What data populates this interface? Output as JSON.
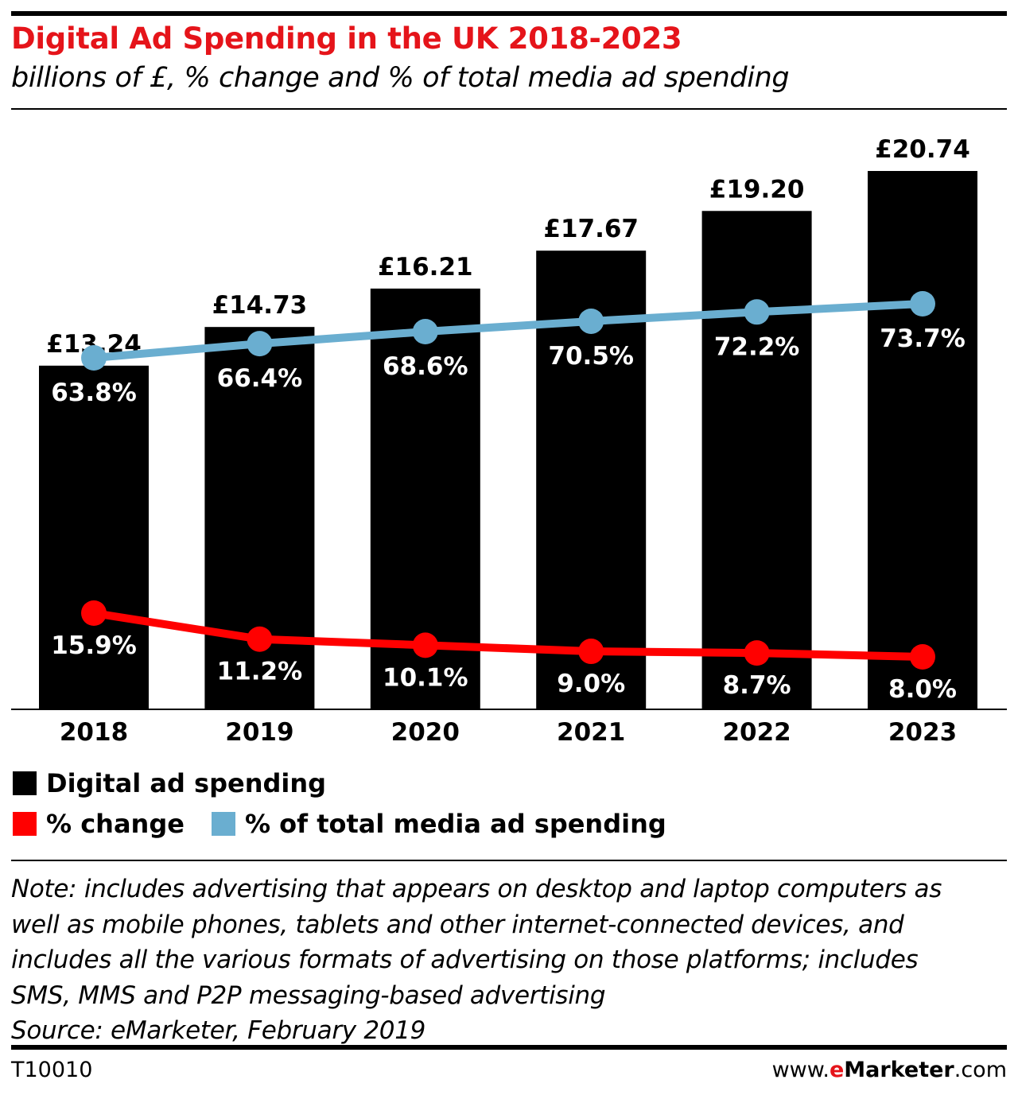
{
  "header": {
    "title": "Digital Ad Spending in the UK 2018-2023",
    "subtitle": "billions of £, % change and % of total media ad spending"
  },
  "chart_data": {
    "type": "bar",
    "categories": [
      "2018",
      "2019",
      "2020",
      "2021",
      "2022",
      "2023"
    ],
    "series": [
      {
        "name": "Digital ad spending",
        "type": "bar",
        "values": [
          13.24,
          14.73,
          16.21,
          17.67,
          19.2,
          20.74
        ],
        "labels": [
          "£13.24",
          "£14.73",
          "£16.21",
          "£17.67",
          "£19.20",
          "£20.74"
        ],
        "color": "#000000"
      },
      {
        "name": "% of total media ad spending",
        "type": "line",
        "values": [
          63.8,
          66.4,
          68.6,
          70.5,
          72.2,
          73.7
        ],
        "labels": [
          "63.8%",
          "66.4%",
          "68.6%",
          "70.5%",
          "72.2%",
          "73.7%"
        ],
        "color": "#6aaed0"
      },
      {
        "name": "% change",
        "type": "line",
        "values": [
          15.9,
          11.2,
          10.1,
          9.0,
          8.7,
          8.0
        ],
        "labels": [
          "15.9%",
          "11.2%",
          "10.1%",
          "9.0%",
          "8.7%",
          "8.0%"
        ],
        "color": "#ff0000"
      }
    ],
    "grid": false,
    "legend_placement": "bottom-left"
  },
  "legend": {
    "items": [
      {
        "label": "Digital ad spending",
        "color": "#000000"
      },
      {
        "label": "% change",
        "color": "#ff0000"
      },
      {
        "label": "% of total media ad spending",
        "color": "#6aaed0"
      }
    ]
  },
  "footnote": {
    "lines": [
      "Note: includes advertising that appears on desktop and laptop computers as",
      "well as mobile phones, tablets and other internet-connected devices, and",
      "includes all the various formats of advertising on those platforms; includes",
      "SMS, MMS and P2P messaging-based advertising",
      "Source: eMarketer, February 2019"
    ]
  },
  "footer": {
    "chart_id": "T10010",
    "brand_prefix": "www.",
    "brand_e": "e",
    "brand_name": "Marketer",
    "brand_suffix": ".com"
  },
  "colors": {
    "title": "#e5141a",
    "bar": "#000000",
    "share_line": "#6aaed0",
    "change_line": "#ff0000"
  }
}
